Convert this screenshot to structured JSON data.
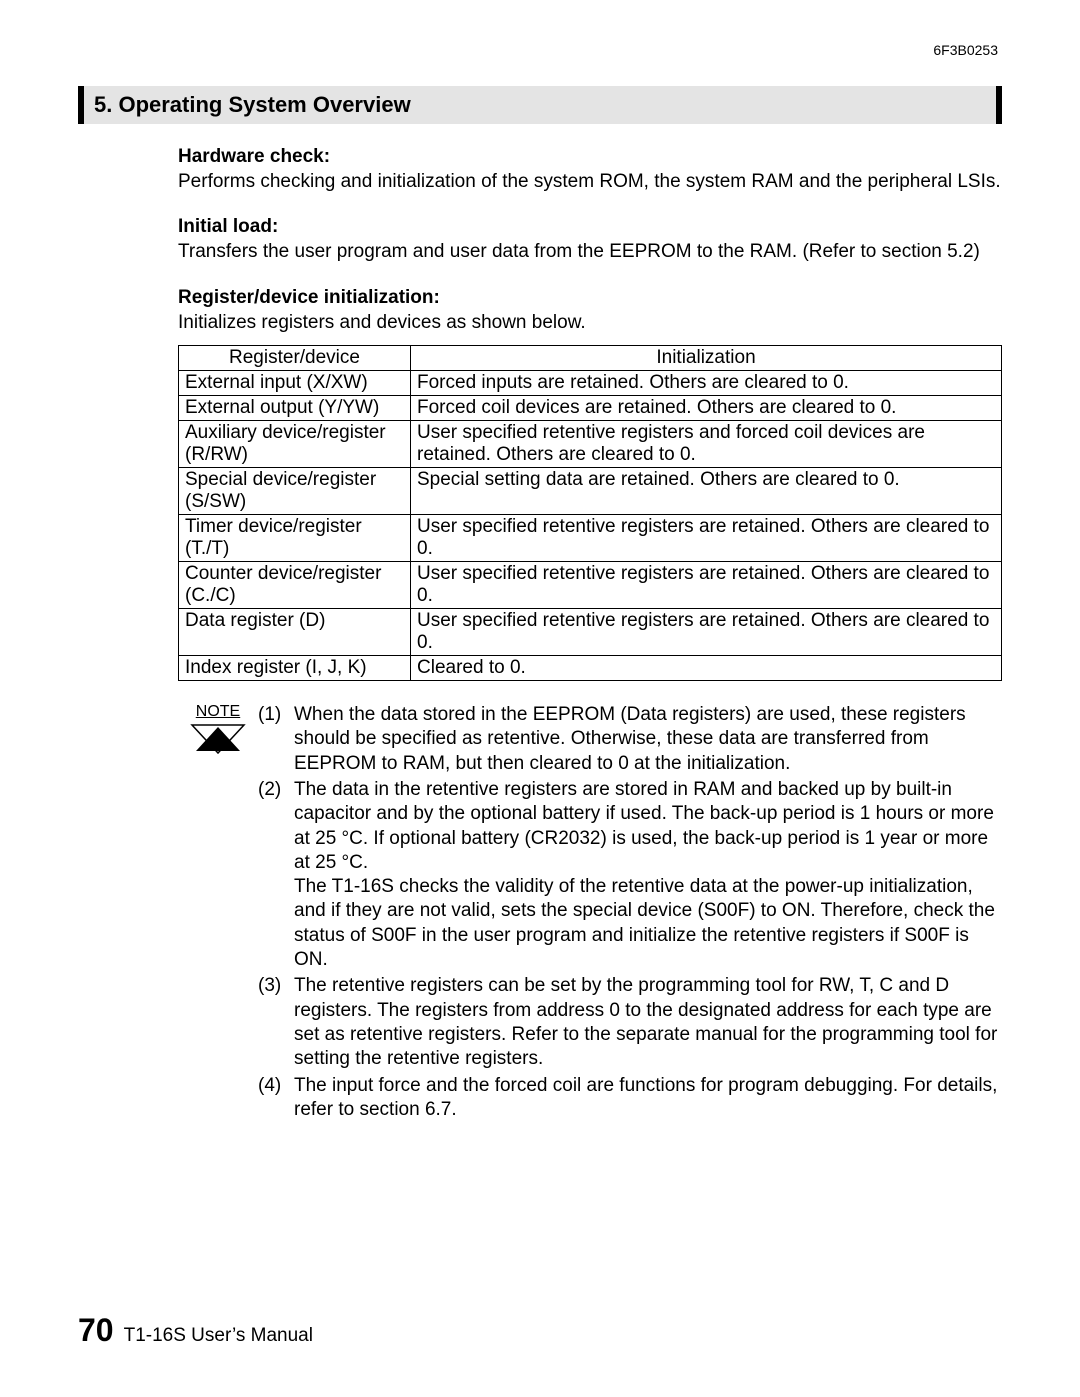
{
  "doc_number": "6F3B0253",
  "chapter_title": "5. Operating System Overview",
  "sections": {
    "hw_check_h": "Hardware check:",
    "hw_check_p": "Performs checking and initialization of the system ROM, the system RAM and the peripheral LSIs.",
    "init_load_h": "Initial load:",
    "init_load_p": "Transfers the user program and user data from the EEPROM to the RAM. (Refer to section 5.2)",
    "reg_init_h": "Register/device initialization:",
    "reg_init_p": "Initializes registers and devices as shown below."
  },
  "table": {
    "col1_header": "Register/device",
    "col2_header": "Initialization",
    "rows": [
      {
        "c1": "External input (X/XW)",
        "c2": "Forced inputs are retained. Others are cleared to 0."
      },
      {
        "c1": "External output (Y/YW)",
        "c2": "Forced coil devices are retained. Others are cleared to 0."
      },
      {
        "c1": "Auxiliary device/register (R/RW)",
        "c2": "User specified retentive registers and forced coil devices are retained. Others are cleared to 0."
      },
      {
        "c1": "Special device/register (S/SW)",
        "c2": "Special setting data are retained. Others are cleared to 0."
      },
      {
        "c1": "Timer device/register (T./T)",
        "c2": "User specified retentive registers are retained. Others are cleared to 0."
      },
      {
        "c1": "Counter device/register (C./C)",
        "c2": "User specified retentive registers are retained. Others are cleared to 0."
      },
      {
        "c1": "Data register (D)",
        "c2": "User specified retentive registers are retained. Others are cleared to 0."
      },
      {
        "c1": "Index register (I, J, K)",
        "c2": "Cleared to 0."
      }
    ]
  },
  "note_label": "NOTE",
  "notes": [
    {
      "n": "(1)",
      "t": "When the data stored in the EEPROM (Data registers) are used, these registers should be specified as retentive. Otherwise, these data are transferred from EEPROM to RAM, but then cleared to 0 at the initialization."
    },
    {
      "n": "(2)",
      "t": "The data in the retentive registers are stored in RAM and backed up by built-in capacitor and by the optional battery if used. The back-up period is 1 hours or more at 25 °C. If optional battery (CR2032) is used, the back-up period is 1 year or more at 25 °C.\nThe T1-16S checks the validity of the retentive data at the power-up initialization, and if they are not valid, sets the special device (S00F) to ON. Therefore, check the status of S00F in the user program and initialize the retentive registers if S00F is ON."
    },
    {
      "n": "(3)",
      "t": "The retentive registers can be set by the programming tool for RW, T, C and D registers. The registers from address 0 to the designated address for each type are set as retentive registers. Refer to the separate manual for the programming tool for setting the retentive registers."
    },
    {
      "n": "(4)",
      "t": "The input force and the forced coil are functions for program debugging. For details, refer to section 6.7."
    }
  ],
  "footer": {
    "page_number": "70",
    "manual_name": "T1-16S User’s Manual"
  },
  "style": {
    "page_bg": "#ffffff",
    "text_color": "#000000",
    "title_bg": "#e4e4e4",
    "title_border": "#000000",
    "table_border": "#000000",
    "body_font_size_pt": 14,
    "title_font_size_pt": 16,
    "page_num_font_size_pt": 24
  }
}
